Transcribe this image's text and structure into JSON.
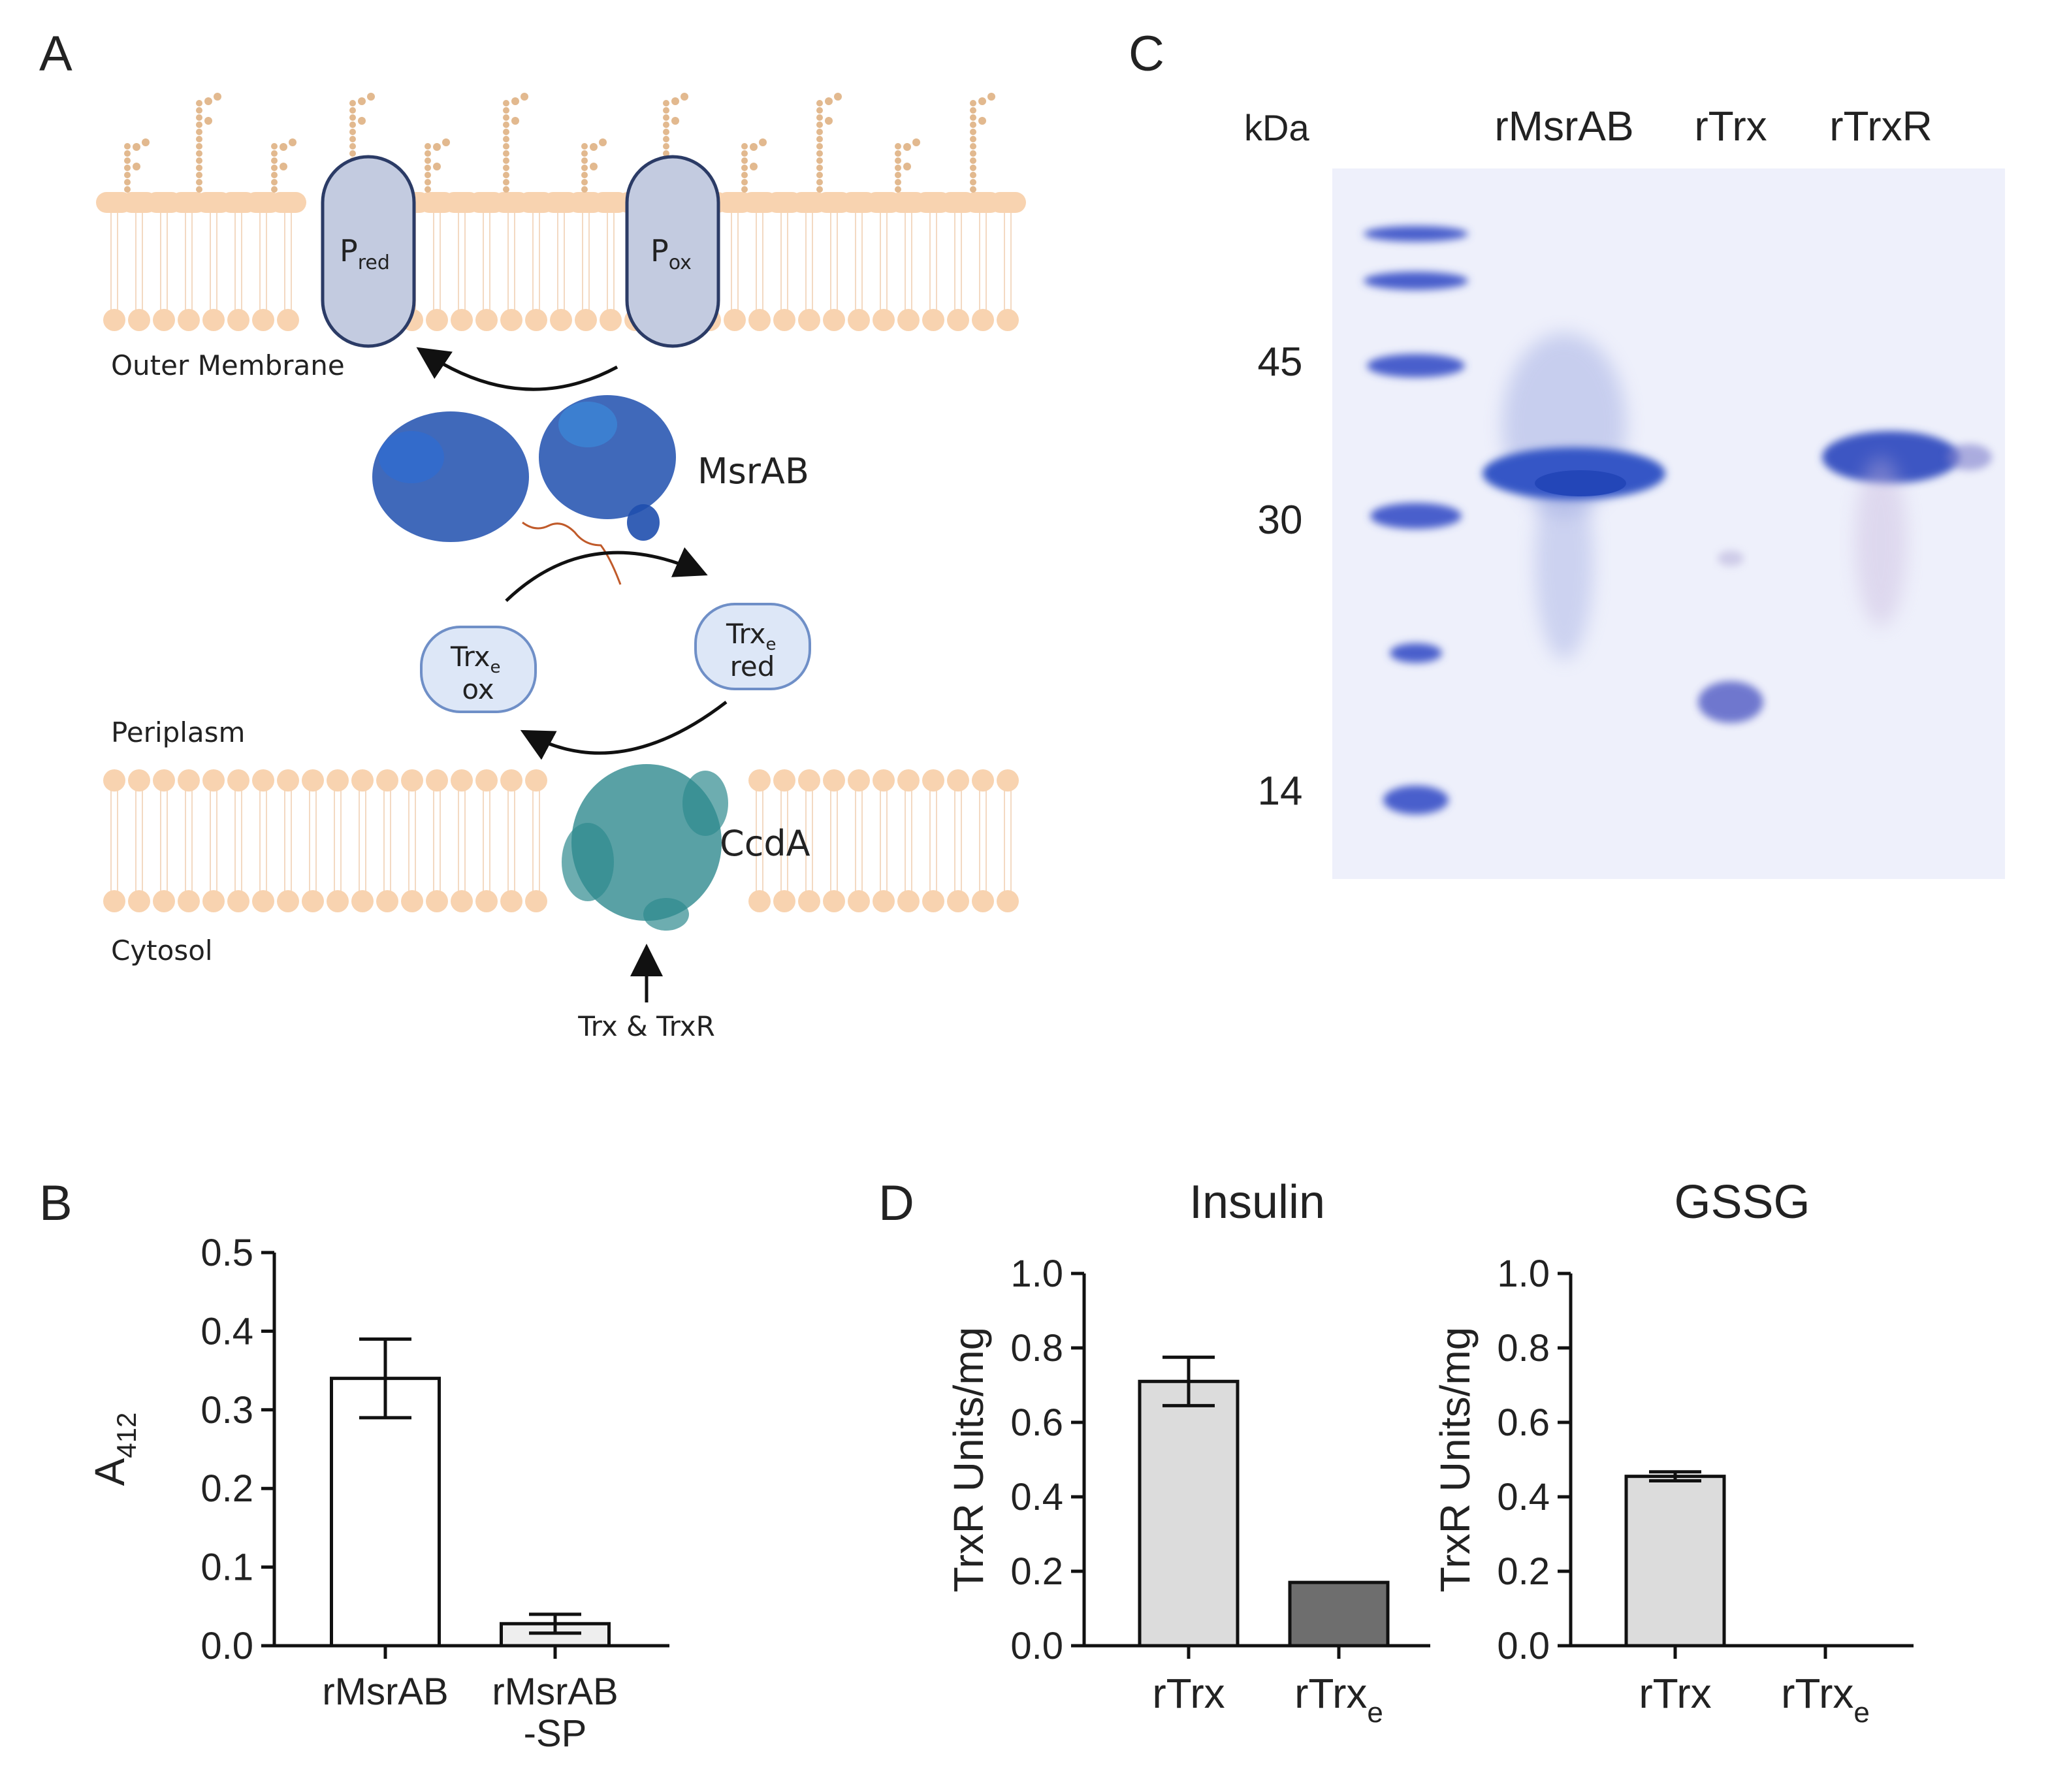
{
  "panel_labels": {
    "a": "A",
    "b": "B",
    "c": "C",
    "d": "D"
  },
  "panel_a": {
    "outer_membrane": "Outer Membrane",
    "periplasm": "Periplasm",
    "cytosol": "Cytosol",
    "p_red": {
      "base": "P",
      "sub": "red"
    },
    "p_ox": {
      "base": "P",
      "sub": "ox"
    },
    "msrab": "MsrAB",
    "trxe_ox": {
      "base": "Trx",
      "sub": "e",
      "line2": "ox"
    },
    "trxe_red": {
      "base": "Trx",
      "sub": "e",
      "line2": "red"
    },
    "ccda": "CcdA",
    "trx_trxr": "Trx & TrxR",
    "colors": {
      "lipid": "#f8d3b0",
      "porin": "#c3cbe0",
      "porin_stroke": "#2b3b66",
      "msrab": "#1f4fae",
      "ccda": "#2f8a8f",
      "trx_fill": "#dde7f7"
    }
  },
  "panel_c": {
    "kda_label": "kDa",
    "lanes": [
      "rMsrAB",
      "rTrx",
      "rTrxR"
    ],
    "markers": [
      "45",
      "30",
      "14"
    ],
    "gel_color": "#4a5fcc"
  },
  "chart_data": [
    {
      "type": "bar",
      "panel": "B",
      "title": "",
      "ylabel": {
        "base": "A",
        "sub": "412"
      },
      "categories": [
        "rMsrAB",
        "rMsrAB\n-SP"
      ],
      "category_lines": [
        [
          "rMsrAB"
        ],
        [
          "rMsrAB",
          "-SP"
        ]
      ],
      "values": [
        0.34,
        0.028
      ],
      "errors": [
        0.05,
        0.012
      ],
      "colors": [
        "#ffffff",
        "#eeeeee"
      ],
      "ylim": [
        0,
        0.5
      ],
      "yticks": [
        "0.0",
        "0.1",
        "0.2",
        "0.3",
        "0.4",
        "0.5"
      ]
    },
    {
      "type": "bar",
      "panel": "D",
      "title": "Insulin",
      "ylabel": "TrxR Units/mg",
      "categories": [
        {
          "base": "rTrx",
          "sub": ""
        },
        {
          "base": "rTrx",
          "sub": "e"
        }
      ],
      "values": [
        0.71,
        0.17
      ],
      "errors": [
        0.065,
        0
      ],
      "colors": [
        "#dcdcdc",
        "#6e6e6e"
      ],
      "ylim": [
        0,
        1.0
      ],
      "yticks": [
        "0.0",
        "0.2",
        "0.4",
        "0.6",
        "0.8",
        "1.0"
      ]
    },
    {
      "type": "bar",
      "panel": "D",
      "title": "GSSG",
      "ylabel": "TrxR Units/mg",
      "categories": [
        {
          "base": "rTrx",
          "sub": ""
        },
        {
          "base": "rTrx",
          "sub": "e"
        }
      ],
      "values": [
        0.455,
        0
      ],
      "errors": [
        0.012,
        0
      ],
      "colors": [
        "#dcdcdc",
        "#6e6e6e"
      ],
      "ylim": [
        0,
        1.0
      ],
      "yticks": [
        "0.0",
        "0.2",
        "0.4",
        "0.6",
        "0.8",
        "1.0"
      ]
    }
  ]
}
